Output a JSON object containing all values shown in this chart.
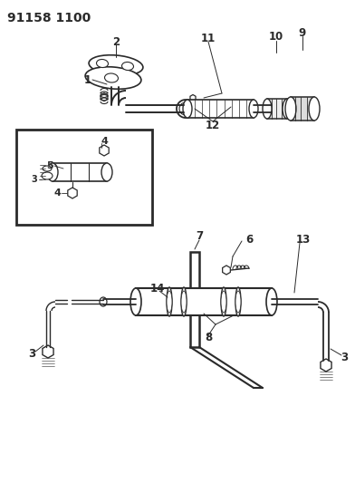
{
  "title": "91158 1100",
  "bg_color": "#ffffff",
  "line_color": "#2a2a2a",
  "title_fontsize": 10,
  "label_fontsize": 8.5,
  "figsize": [
    3.92,
    5.33
  ],
  "dpi": 100
}
